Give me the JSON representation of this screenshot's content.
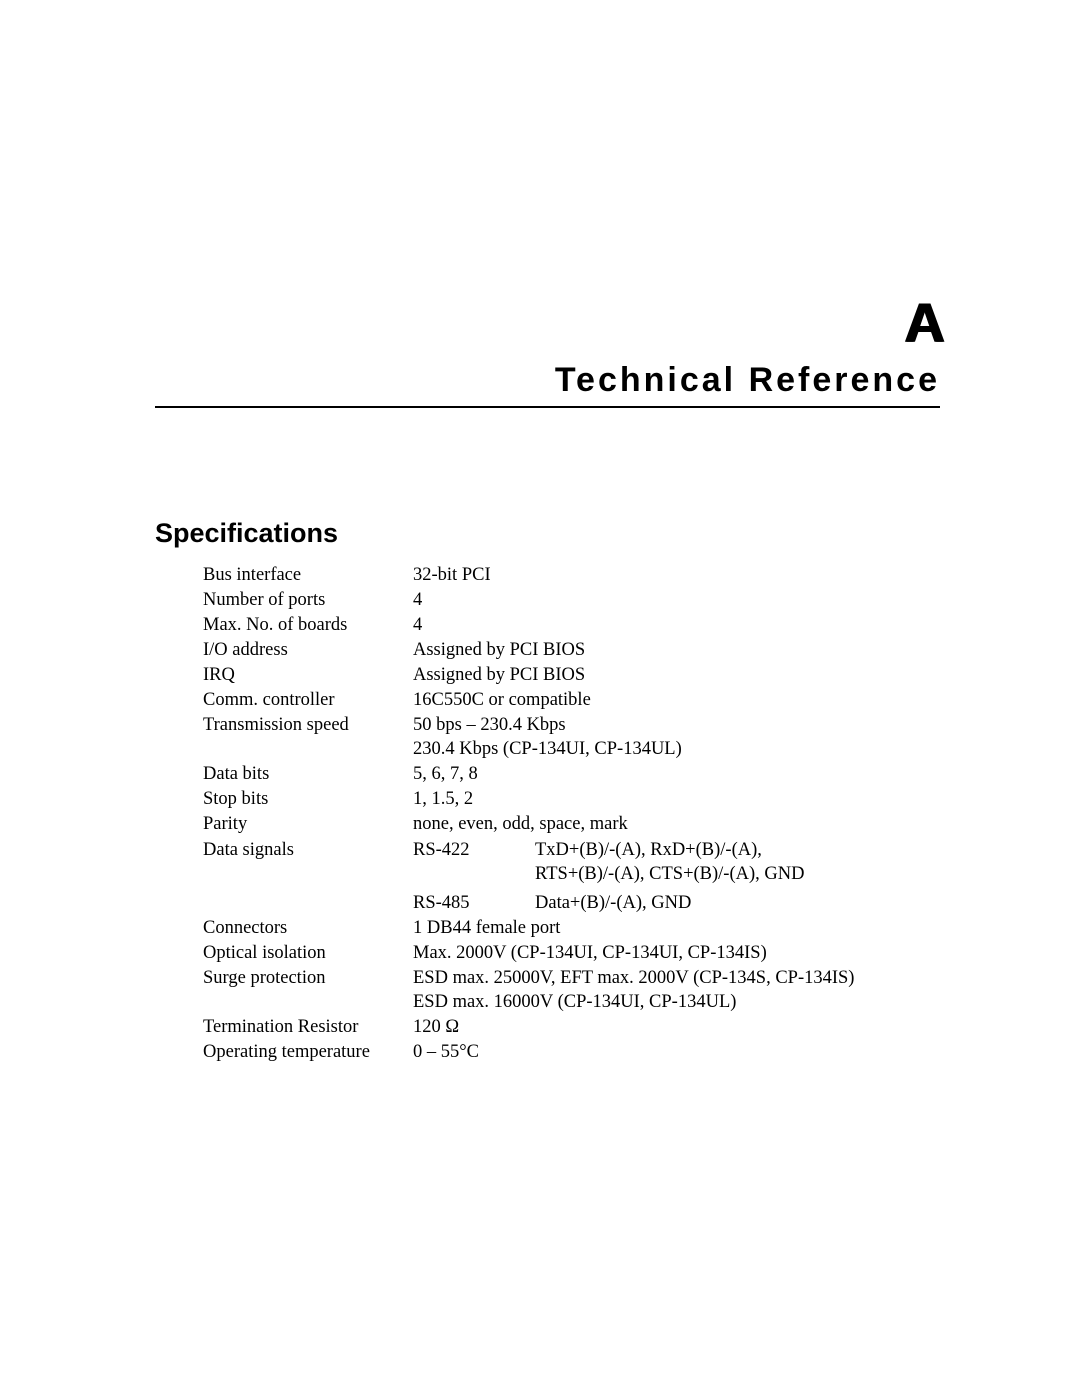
{
  "appendix_letter": "A",
  "chapter_title": "Technical Reference",
  "section_title": "Specifications",
  "specs": {
    "bus_interface": {
      "label": "Bus interface",
      "value": "32-bit PCI"
    },
    "num_ports": {
      "label": "Number of ports",
      "value": "4"
    },
    "max_boards": {
      "label": "Max. No. of boards",
      "value": "4"
    },
    "io_address": {
      "label": "I/O address",
      "value": "Assigned by PCI BIOS"
    },
    "irq": {
      "label": "IRQ",
      "value": "Assigned by PCI BIOS"
    },
    "comm_controller": {
      "label": "Comm. controller",
      "value": "16C550C or compatible"
    },
    "transmission_speed": {
      "label": "Transmission speed",
      "value_line1": "50 bps – 230.4 Kbps",
      "value_line2": "230.4 Kbps (CP-134UI, CP-134UL)"
    },
    "data_bits": {
      "label": "Data bits",
      "value": "5, 6, 7, 8"
    },
    "stop_bits": {
      "label": "Stop bits",
      "value": "1, 1.5, 2"
    },
    "parity": {
      "label": "Parity",
      "value": "none, even, odd, space, mark"
    },
    "data_signals": {
      "label": "Data signals",
      "rs422_label": "RS-422",
      "rs422_line1": "TxD+(B)/-(A), RxD+(B)/-(A),",
      "rs422_line2": "RTS+(B)/-(A), CTS+(B)/-(A), GND",
      "rs485_label": "RS-485",
      "rs485_value": "Data+(B)/-(A), GND"
    },
    "connectors": {
      "label": "Connectors",
      "value": "1 DB44 female port"
    },
    "optical_isolation": {
      "label": "Optical isolation",
      "value": "Max. 2000V (CP-134UI, CP-134UI, CP-134IS)"
    },
    "surge_protection": {
      "label": "Surge protection",
      "value_line1": "ESD max. 25000V, EFT max. 2000V (CP-134S, CP-134IS)",
      "value_line2": "ESD max. 16000V (CP-134UI, CP-134UL)"
    },
    "termination_resistor": {
      "label": "Termination Resistor",
      "value": "120 Ω"
    },
    "operating_temp": {
      "label": "Operating temperature",
      "value": "0 – 55°C"
    }
  }
}
